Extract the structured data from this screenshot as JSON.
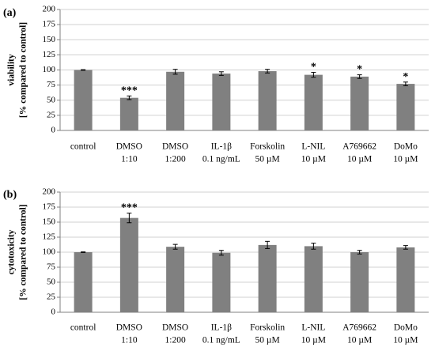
{
  "colors": {
    "bar": "#808080",
    "grid": "#d0d0d0",
    "axis": "#808080",
    "error": "#000000"
  },
  "chart_data": [
    {
      "type": "bar",
      "panel_label": "(a)",
      "ylabel_line1": "viability",
      "ylabel_line2": "[% compared to control]",
      "ylim": [
        0,
        200
      ],
      "yticks": [
        "0",
        "25",
        "50",
        "75",
        "100",
        "125",
        "150",
        "175",
        "200"
      ],
      "grid": true,
      "categories": [
        {
          "line1": "control",
          "line2": ""
        },
        {
          "line1": "DMSO",
          "line2": "1:10"
        },
        {
          "line1": "DMSO",
          "line2": "1:200"
        },
        {
          "line1": "IL-1β",
          "line2": "0.1 ng/mL"
        },
        {
          "line1": "Forskolin",
          "line2": "50 µM"
        },
        {
          "line1": "L-NIL",
          "line2": "10 µM"
        },
        {
          "line1": "A769662",
          "line2": "10 µM"
        },
        {
          "line1": "DoMo",
          "line2": "10 µM"
        }
      ],
      "values": [
        100,
        54,
        97,
        94,
        98,
        92,
        89,
        77
      ],
      "errors": [
        0.5,
        3,
        4,
        3,
        3,
        4,
        3,
        3
      ],
      "significance": [
        "",
        "***",
        "",
        "",
        "",
        "*",
        "*",
        "*"
      ]
    },
    {
      "type": "bar",
      "panel_label": "(b)",
      "ylabel_line1": "cytotoxicity",
      "ylabel_line2": "[% compared to control]",
      "ylim": [
        0,
        200
      ],
      "yticks": [
        "0",
        "25",
        "50",
        "75",
        "100",
        "125",
        "150",
        "175",
        "200"
      ],
      "grid": true,
      "categories": [
        {
          "line1": "control",
          "line2": ""
        },
        {
          "line1": "DMSO",
          "line2": "1:10"
        },
        {
          "line1": "DMSO",
          "line2": "1:200"
        },
        {
          "line1": "IL-1β",
          "line2": "0.1 ng/mL"
        },
        {
          "line1": "Forskolin",
          "line2": "50 µM"
        },
        {
          "line1": "L-NIL",
          "line2": "10 µM"
        },
        {
          "line1": "A769662",
          "line2": "10 µM"
        },
        {
          "line1": "DoMo",
          "line2": "10 µM"
        }
      ],
      "values": [
        100,
        157,
        109,
        99,
        112,
        110,
        100,
        108
      ],
      "errors": [
        0.5,
        8,
        4,
        4,
        6,
        5,
        3,
        3
      ],
      "significance": [
        "",
        "***",
        "",
        "",
        "",
        "",
        "",
        ""
      ]
    }
  ]
}
